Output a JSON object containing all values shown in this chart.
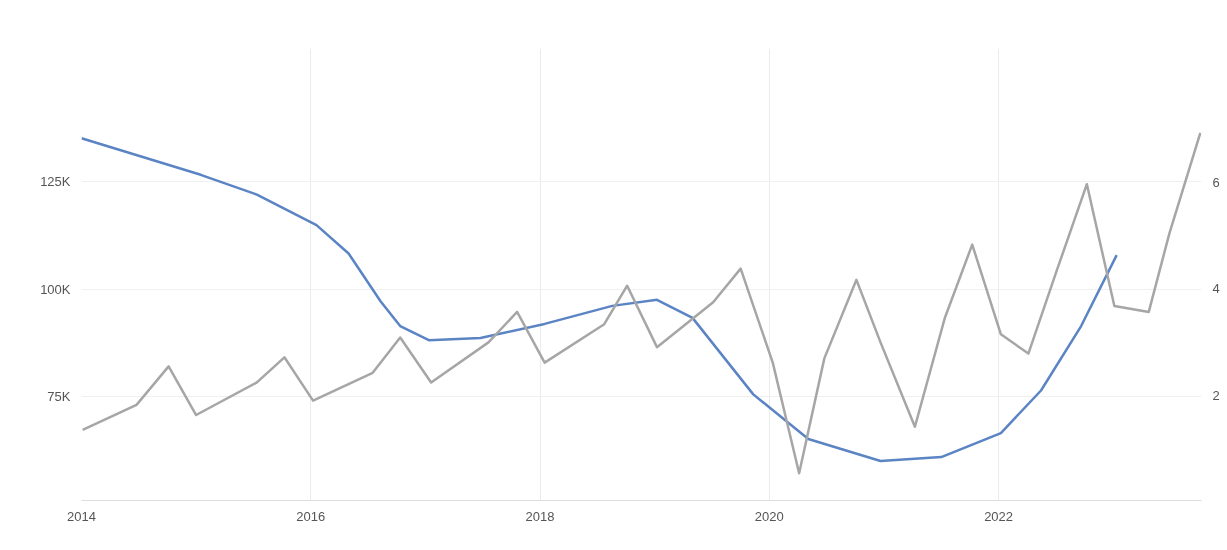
{
  "chart_data": {
    "type": "line",
    "xlim": [
      2014,
      2023.77
    ],
    "xticks": [
      2014,
      2016,
      2018,
      2020,
      2022
    ],
    "ylim": [
      50.8,
      156
    ],
    "yticks": [
      {
        "value": 75,
        "label": "75K"
      },
      {
        "value": 100,
        "label": "100K"
      },
      {
        "value": 125,
        "label": "125K"
      }
    ],
    "y2lim": [
      0.04,
      8.5
    ],
    "y2ticks": [
      2,
      4,
      6
    ],
    "grid": true,
    "marker": "none",
    "line_style": "solid",
    "series": [
      {
        "color": "#5b84c4",
        "x": [
          2014.0,
          2015.04,
          2015.53,
          2016.05,
          2016.33,
          2016.61,
          2016.78,
          2017.03,
          2017.48,
          2018.04,
          2018.63,
          2019.02,
          2019.33,
          2019.86,
          2020.34,
          2020.97,
          2021.5,
          2022.02,
          2022.37,
          2022.72,
          2023.03
        ],
        "values": [
          135.1,
          126.6,
          122.0,
          114.9,
          108.3,
          97.1,
          91.4,
          88.1,
          88.6,
          91.9,
          96.1,
          97.5,
          93.3,
          75.5,
          65.1,
          60.0,
          60.9,
          66.5,
          76.4,
          91.4,
          107.9
        ]
      },
      {
        "color": "#a6a6a6",
        "axis": "y2",
        "x": [
          2014.01,
          2014.48,
          2014.76,
          2015.0,
          2015.53,
          2015.77,
          2016.02,
          2016.54,
          2016.78,
          2017.05,
          2017.55,
          2017.8,
          2018.04,
          2018.56,
          2018.76,
          2019.02,
          2019.51,
          2019.75,
          2020.03,
          2020.26,
          2020.48,
          2020.76,
          2020.97,
          2021.27,
          2021.53,
          2021.77,
          2022.02,
          2022.26,
          2022.51,
          2022.77,
          2023.01,
          2023.31,
          2023.49,
          2023.76
        ],
        "values": [
          1.36,
          1.83,
          2.55,
          1.64,
          2.25,
          2.72,
          1.91,
          2.43,
          3.09,
          2.25,
          3.0,
          3.57,
          2.62,
          3.34,
          4.06,
          2.91,
          3.75,
          4.38,
          2.62,
          0.55,
          2.7,
          4.17,
          3.0,
          1.42,
          3.45,
          4.83,
          3.15,
          2.79,
          4.36,
          5.96,
          3.68,
          3.57,
          5.04,
          6.92
        ]
      }
    ]
  }
}
